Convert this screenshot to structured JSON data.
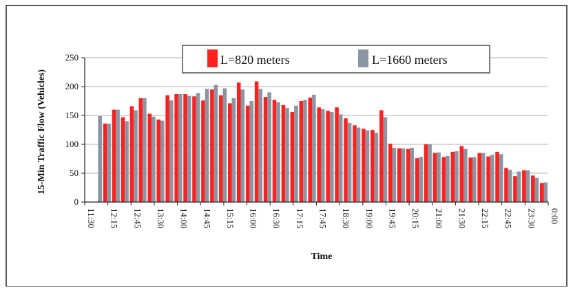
{
  "chart_data": {
    "type": "bar",
    "title": "",
    "xlabel": "Time",
    "ylabel": "15-Min Traffic Flow (Vehicles)",
    "ylim": [
      0,
      250
    ],
    "yticks": [
      0,
      50,
      100,
      150,
      200,
      250
    ],
    "grid": true,
    "legend_position": "top-center",
    "x_tick_labels": [
      "11:30",
      "12:15",
      "12:45",
      "13:30",
      "14:00",
      "14:45",
      "15:15",
      "16:00",
      "16:30",
      "17:15",
      "17:45",
      "18:30",
      "19:00",
      "19:45",
      "20:15",
      "21:00",
      "21:30",
      "22:15",
      "22:45",
      "23:30",
      "0:00"
    ],
    "series": [
      {
        "name": "L=820 meters",
        "color": "#ff2020",
        "values": [
          0,
          0,
          136,
          160,
          147,
          166,
          180,
          153,
          143,
          185,
          187,
          187,
          183,
          176,
          195,
          185,
          171,
          207,
          167,
          209,
          182,
          177,
          168,
          156,
          175,
          181,
          164,
          158,
          164,
          145,
          133,
          127,
          125,
          159,
          101,
          93,
          92,
          76,
          100,
          85,
          78,
          87,
          97,
          77,
          85,
          79,
          87,
          59,
          45,
          55,
          46,
          33
        ]
      },
      {
        "name": "L=1660 meters",
        "color": "#8c96a2",
        "values": [
          0,
          149,
          136,
          160,
          140,
          159,
          180,
          148,
          141,
          176,
          187,
          184,
          189,
          196,
          203,
          197,
          180,
          195,
          175,
          196,
          190,
          173,
          163,
          167,
          177,
          186,
          161,
          156,
          152,
          137,
          129,
          124,
          120,
          147,
          94,
          93,
          94,
          78,
          100,
          86,
          80,
          88,
          92,
          78,
          85,
          82,
          83,
          56,
          53,
          55,
          42,
          34
        ]
      }
    ]
  }
}
